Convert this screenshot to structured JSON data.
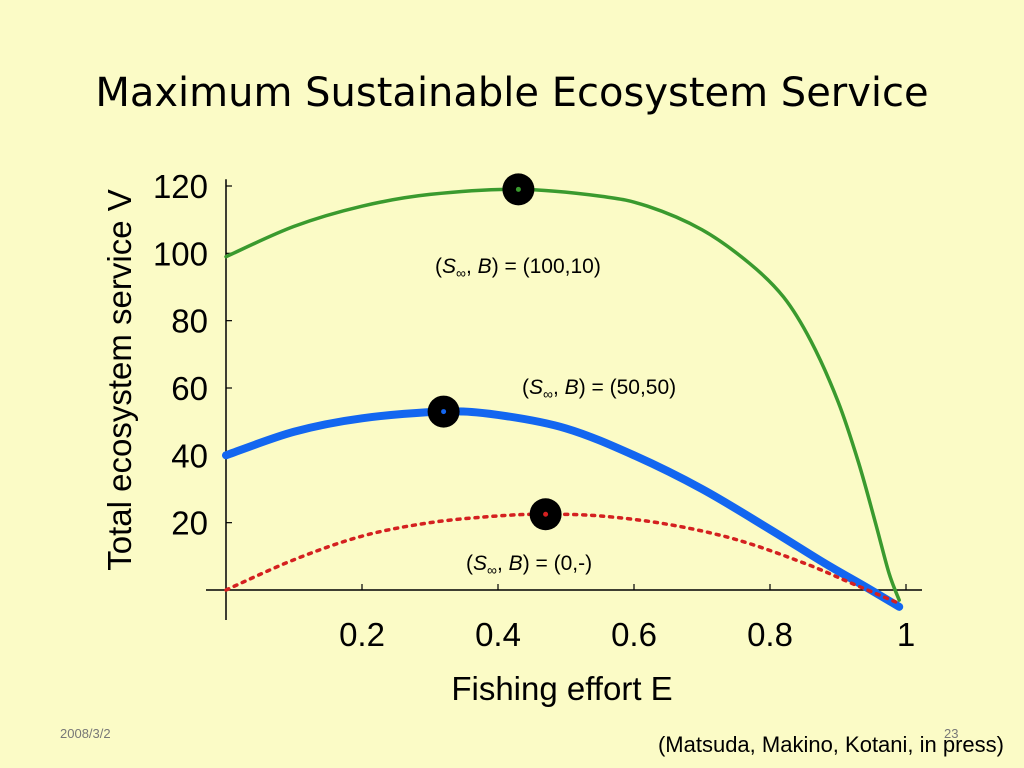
{
  "slide": {
    "title": "Maximum Sustainable Ecosystem Service",
    "date": "2008/3/2",
    "page_number": "23",
    "citation": "(Matsuda, Makino, Kotani, in press)"
  },
  "colors": {
    "background": "#fbfbc6",
    "green": "#3a9a2e",
    "blue": "#1366f0",
    "red": "#d42020",
    "marker": "#000000"
  },
  "chart_data": {
    "type": "line",
    "xlabel": "Fishing effort E",
    "ylabel": "Total ecosystem service V",
    "xlim": [
      0,
      1
    ],
    "ylim": [
      -5,
      122
    ],
    "x_ticks": [
      0.2,
      0.4,
      0.6,
      0.8,
      1
    ],
    "x_tick_labels": [
      "0.2",
      "0.4",
      "0.6",
      "0.8",
      "1"
    ],
    "y_ticks": [
      20,
      40,
      60,
      80,
      100,
      120
    ],
    "y_tick_labels": [
      "20",
      "40",
      "60",
      "80",
      "100",
      "120"
    ],
    "grid": false,
    "series": [
      {
        "annotation_parts": [
          "(",
          "S",
          "∞",
          ", ",
          "B",
          ") = (100,10)"
        ],
        "color": "green",
        "style": "solid",
        "x": [
          0,
          0.1,
          0.2,
          0.3,
          0.43,
          0.55,
          0.62,
          0.7,
          0.77,
          0.82,
          0.86,
          0.9,
          0.93,
          0.955,
          0.975,
          0.99
        ],
        "y": [
          99,
          108,
          114,
          117.5,
          119,
          117,
          114,
          107,
          97,
          87,
          74,
          56,
          38,
          20,
          5,
          -3
        ],
        "max_point": [
          0.43,
          119
        ]
      },
      {
        "annotation_parts": [
          "(",
          "S",
          "∞",
          ", ",
          "B",
          ") = (50,50)"
        ],
        "color": "blue",
        "style": "solid-thick",
        "x": [
          0,
          0.1,
          0.2,
          0.32,
          0.4,
          0.5,
          0.6,
          0.7,
          0.8,
          0.88,
          0.94,
          0.99
        ],
        "y": [
          40,
          47,
          51,
          53,
          52,
          48,
          40,
          30,
          18,
          8,
          1,
          -5
        ],
        "max_point": [
          0.32,
          53
        ]
      },
      {
        "annotation_parts": [
          "(",
          "S",
          "∞",
          ", ",
          "B",
          ") = (0,-)"
        ],
        "color": "red",
        "style": "dotted",
        "x": [
          0,
          0.1,
          0.2,
          0.3,
          0.4,
          0.47,
          0.55,
          0.65,
          0.75,
          0.85,
          0.92,
          0.99
        ],
        "y": [
          0,
          9,
          16,
          20,
          22,
          22.5,
          22,
          19.5,
          15,
          8,
          2,
          -4
        ],
        "max_point": [
          0.47,
          22.5
        ]
      }
    ]
  }
}
